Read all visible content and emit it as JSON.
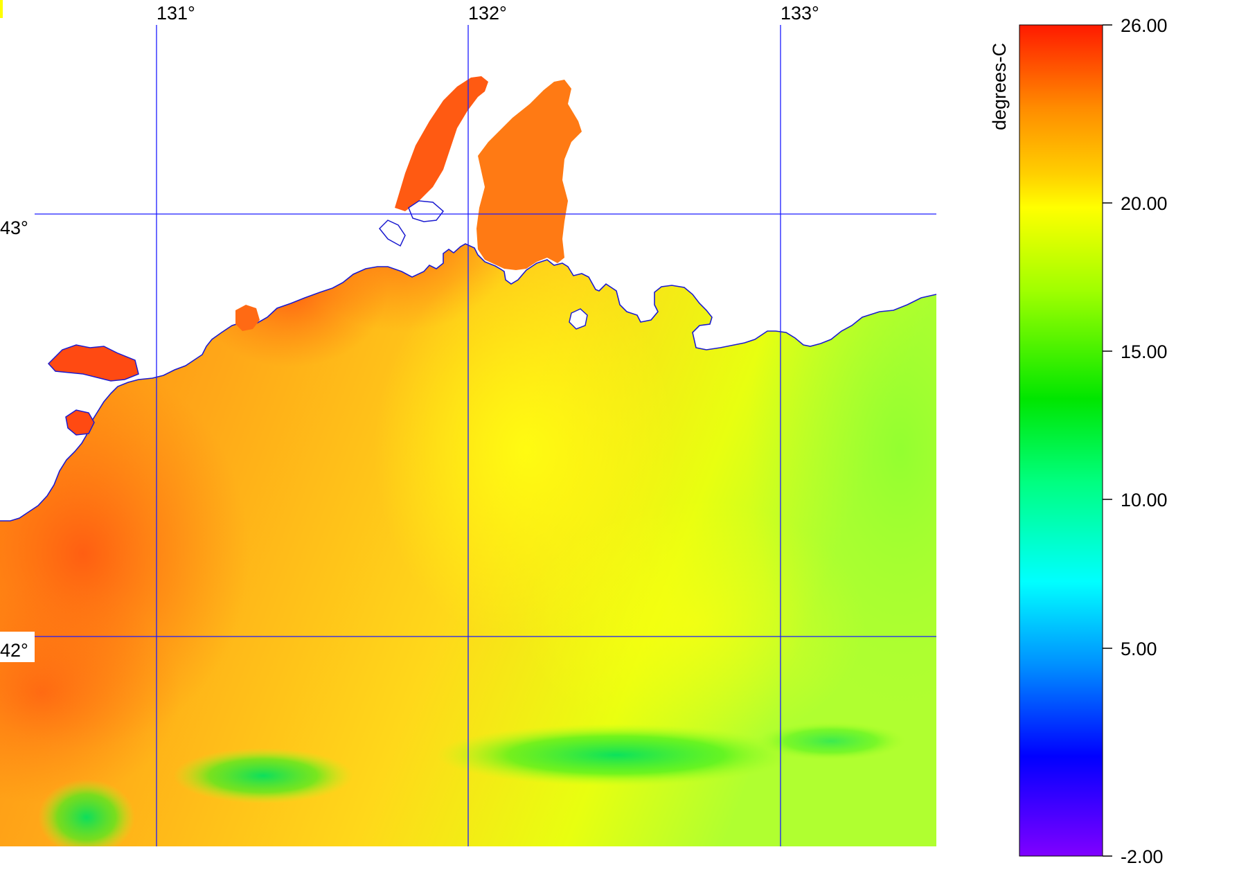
{
  "map": {
    "longitude_labels": [
      "131°",
      "132°",
      "133°"
    ],
    "latitude_labels": [
      "43°",
      "42°"
    ],
    "grid_color": "#1a1aff",
    "coastline_color": "#1a1ad0",
    "land_color": "#ffffff",
    "corner_mark_color": "#ffff00"
  },
  "colorbar": {
    "unit_label": "degrees-C",
    "tick_labels": [
      "26.00",
      "20.00",
      "15.00",
      "10.00",
      "5.00",
      "-2.00"
    ],
    "range": [
      -2,
      26
    ],
    "gradient_colors": [
      "#ff1a00",
      "#ff8c00",
      "#ffd000",
      "#ffff00",
      "#a0ff00",
      "#00e600",
      "#00ff80",
      "#00ffff",
      "#0090ff",
      "#0000ff",
      "#8000ff"
    ]
  }
}
